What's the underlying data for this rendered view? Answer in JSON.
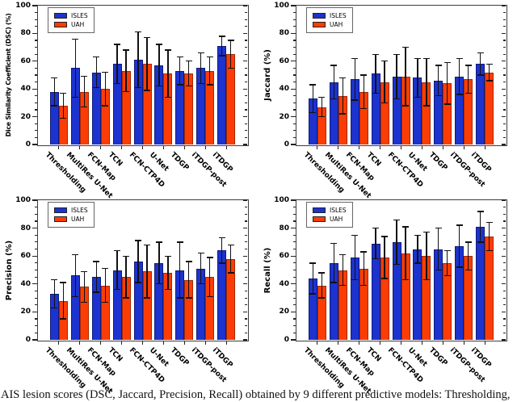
{
  "figure": {
    "caption": "AIS lesion scores (DSC, Jaccard, Precision, Recall) obtained by 9 different predictive models: Thresholding,",
    "background": "#ffffff"
  },
  "palette": {
    "isles": "#1c33cf",
    "uah": "#fb3d05",
    "isles_edge": "#0d1a7a",
    "uah_edge": "#a62800",
    "spine": "#3c3c3c",
    "error": "#111111"
  },
  "legend": {
    "position": "upper left",
    "items": [
      {
        "label": "ISLES",
        "color": "#1c33cf"
      },
      {
        "label": "UAH",
        "color": "#fb3d05"
      }
    ]
  },
  "categories": [
    "Thresholding",
    "MultiRes U-Net",
    "FCN-Map",
    "TCN",
    "FCN-CTP4D",
    "U-Net",
    "TDGP",
    "iTDGP-post",
    "iTDGP"
  ],
  "chart_data": [
    {
      "type": "bar",
      "name": "DSC",
      "position": "top-left",
      "title": "",
      "xlabel": "",
      "ylabel": "Dice Similarity Coefficient (DSC) (%)",
      "ylim": [
        0,
        100
      ],
      "yticks": [
        0,
        20,
        40,
        60,
        80,
        100
      ],
      "minor_tick_step": 5,
      "grid": false,
      "legend_position": "upper left",
      "categories": [
        "Thresholding",
        "MultiRes U-Net",
        "FCN-Map",
        "TCN",
        "FCN-CTP4D",
        "U-Net",
        "TDGP",
        "iTDGP-post",
        "iTDGP"
      ],
      "series": [
        {
          "name": "ISLES",
          "values": [
            38,
            55,
            52,
            58,
            61,
            57,
            53,
            55,
            71
          ],
          "errors": [
            10,
            21,
            11,
            14,
            20,
            15,
            10,
            11,
            7
          ]
        },
        {
          "name": "UAH",
          "values": [
            28,
            38,
            40,
            53,
            58,
            51,
            51,
            53,
            65
          ],
          "errors": [
            9,
            11,
            12,
            15,
            19,
            17,
            9,
            10,
            10
          ]
        }
      ]
    },
    {
      "type": "bar",
      "name": "Jaccard",
      "position": "top-right",
      "title": "",
      "xlabel": "",
      "ylabel": "Jaccard (%)",
      "ylim": [
        0,
        100
      ],
      "yticks": [
        0,
        20,
        40,
        60,
        80,
        100
      ],
      "minor_tick_step": 5,
      "grid": false,
      "legend_position": "upper left",
      "categories": [
        "Thresholding",
        "MultiRes U-Net",
        "FCN-Map",
        "TCN",
        "FCN-CTP4D",
        "U-Net",
        "TDGP",
        "iTDGP-post",
        "iTDGP"
      ],
      "series": [
        {
          "name": "ISLES",
          "values": [
            33,
            45,
            47,
            51,
            49,
            48,
            46,
            49,
            58
          ],
          "errors": [
            10,
            12,
            15,
            14,
            16,
            14,
            11,
            13,
            8
          ]
        },
        {
          "name": "UAH",
          "values": [
            27,
            35,
            38,
            45,
            49,
            45,
            44,
            47,
            52
          ],
          "errors": [
            7,
            13,
            12,
            15,
            21,
            17,
            15,
            10,
            6
          ]
        }
      ]
    },
    {
      "type": "bar",
      "name": "Precision",
      "position": "bottom-left",
      "title": "",
      "xlabel": "",
      "ylabel": "Precision (%)",
      "ylim": [
        0,
        100
      ],
      "yticks": [
        0,
        20,
        40,
        60,
        80,
        100
      ],
      "minor_tick_step": 5,
      "grid": false,
      "legend_position": "upper left",
      "categories": [
        "Thresholding",
        "MultiRes U-Net",
        "FCN-Map",
        "TCN",
        "FCN-CTP4D",
        "U-Net",
        "TDGP",
        "iTDGP-post",
        "iTDGP"
      ],
      "series": [
        {
          "name": "ISLES",
          "values": [
            33,
            46,
            45,
            50,
            56,
            55,
            50,
            51,
            64
          ],
          "errors": [
            10,
            15,
            11,
            14,
            15,
            15,
            20,
            11,
            9
          ]
        },
        {
          "name": "UAH",
          "values": [
            28,
            38,
            39,
            45,
            49,
            48,
            43,
            45,
            58
          ],
          "errors": [
            13,
            11,
            12,
            15,
            19,
            12,
            13,
            14,
            10
          ]
        }
      ]
    },
    {
      "type": "bar",
      "name": "Recall",
      "position": "bottom-right",
      "title": "",
      "xlabel": "",
      "ylabel": "Recall (%)",
      "ylim": [
        0,
        100
      ],
      "yticks": [
        0,
        20,
        40,
        60,
        80,
        100
      ],
      "minor_tick_step": 5,
      "grid": false,
      "legend_position": "upper left",
      "categories": [
        "Thresholding",
        "MultiRes U-Net",
        "FCN-Map",
        "TCN",
        "FCN-CTP4D",
        "U-Net",
        "TDGP",
        "iTDGP-post",
        "iTDGP"
      ],
      "series": [
        {
          "name": "ISLES",
          "values": [
            44,
            55,
            59,
            69,
            70,
            65,
            65,
            67,
            81
          ],
          "errors": [
            11,
            14,
            16,
            11,
            16,
            10,
            15,
            15,
            11
          ]
        },
        {
          "name": "UAH",
          "values": [
            39,
            50,
            51,
            59,
            62,
            60,
            55,
            60,
            74
          ],
          "errors": [
            9,
            11,
            12,
            15,
            19,
            17,
            9,
            10,
            10
          ]
        }
      ]
    }
  ]
}
